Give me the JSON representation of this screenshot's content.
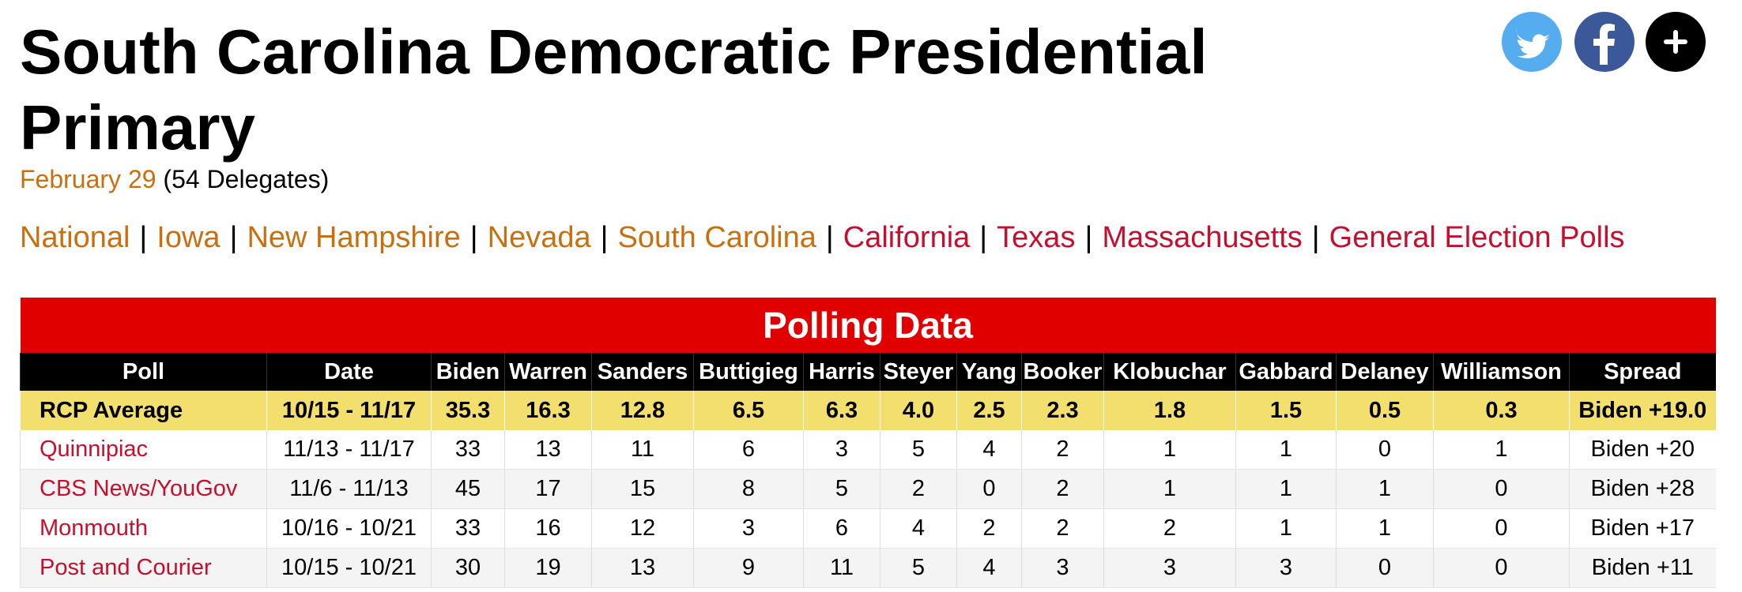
{
  "header": {
    "title": "South Carolina Democratic Presidential Primary",
    "date": "February 29",
    "delegates": "(54 Delegates)"
  },
  "nav": {
    "separator": "|",
    "links": [
      {
        "text": "National",
        "color": "#c8700f"
      },
      {
        "text": "Iowa",
        "color": "#c8700f"
      },
      {
        "text": "New Hampshire",
        "color": "#c8700f"
      },
      {
        "text": "Nevada",
        "color": "#c8700f"
      },
      {
        "text": "South Carolina",
        "color": "#c8700f"
      },
      {
        "text": "California",
        "color": "#c4102e"
      },
      {
        "text": "Texas",
        "color": "#c4102e"
      },
      {
        "text": "Massachusetts",
        "color": "#c4102e"
      },
      {
        "text": "General Election Polls",
        "color": "#c4102e"
      }
    ]
  },
  "table": {
    "title": "Polling Data",
    "columns": [
      "Poll",
      "Date",
      "Biden",
      "Warren",
      "Sanders",
      "Buttigieg",
      "Harris",
      "Steyer",
      "Yang",
      "Booker",
      "Klobuchar",
      "Gabbard",
      "Delaney",
      "Williamson",
      "Spread"
    ],
    "average": [
      "RCP Average",
      "10/15 - 11/17",
      "35.3",
      "16.3",
      "12.8",
      "6.5",
      "6.3",
      "4.0",
      "2.5",
      "2.3",
      "1.8",
      "1.5",
      "0.5",
      "0.3",
      "Biden +19.0"
    ],
    "polls": [
      [
        "Quinnipiac",
        "11/13 - 11/17",
        "33",
        "13",
        "11",
        "6",
        "3",
        "5",
        "4",
        "2",
        "1",
        "1",
        "0",
        "1",
        "Biden +20"
      ],
      [
        "CBS News/YouGov",
        "11/6 - 11/13",
        "45",
        "17",
        "15",
        "8",
        "5",
        "2",
        "0",
        "2",
        "1",
        "1",
        "1",
        "0",
        "Biden +28"
      ],
      [
        "Monmouth",
        "10/16 - 10/21",
        "33",
        "16",
        "12",
        "3",
        "6",
        "4",
        "2",
        "2",
        "2",
        "1",
        "1",
        "0",
        "Biden +17"
      ],
      [
        "Post and Courier",
        "10/15 - 10/21",
        "30",
        "19",
        "13",
        "9",
        "11",
        "5",
        "4",
        "3",
        "3",
        "3",
        "0",
        "0",
        "Biden +11"
      ]
    ]
  }
}
